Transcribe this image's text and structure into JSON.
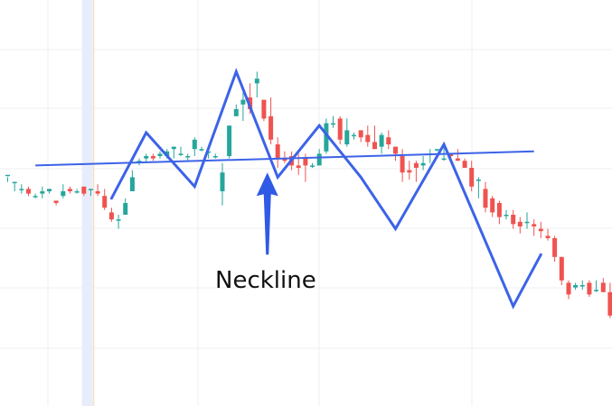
{
  "chart_data": {
    "type": "candlestick",
    "title": "",
    "xlabel": "",
    "ylabel": "",
    "grid": true,
    "ylim": [
      0,
      100
    ],
    "colors": {
      "up": "#26a69a",
      "down": "#ef5350",
      "pattern": "#3c63e8"
    },
    "candles": [
      [
        47,
        47,
        46,
        44
      ],
      [
        44,
        44,
        44,
        40
      ],
      [
        41,
        41,
        43,
        39
      ],
      [
        41,
        39,
        42,
        38
      ],
      [
        38,
        38,
        39,
        37
      ],
      [
        39,
        40,
        42,
        37
      ],
      [
        40,
        41,
        41,
        39
      ],
      [
        36,
        35,
        36,
        34
      ],
      [
        38,
        40,
        43,
        37
      ],
      [
        41,
        40,
        42,
        39
      ],
      [
        40,
        40,
        41,
        39
      ],
      [
        42,
        39,
        42,
        38
      ],
      [
        41,
        41,
        41,
        38
      ],
      [
        40,
        39,
        43,
        38
      ],
      [
        38,
        33,
        41,
        32
      ],
      [
        31,
        28,
        33,
        27
      ],
      [
        28,
        28,
        30,
        24
      ],
      [
        30,
        35,
        37,
        30
      ],
      [
        40,
        46,
        49,
        40
      ],
      [
        53,
        53,
        54,
        51
      ],
      [
        54,
        55,
        56,
        52
      ],
      [
        55,
        54,
        56,
        53
      ],
      [
        55,
        56,
        57,
        54
      ],
      [
        55,
        57,
        58,
        54
      ],
      [
        58,
        59,
        59,
        54
      ],
      [
        56,
        56,
        59,
        55
      ],
      [
        55,
        55,
        56,
        53
      ],
      [
        58,
        62,
        63,
        55
      ],
      [
        58,
        58,
        59,
        57
      ],
      [
        57,
        57,
        57,
        54
      ],
      [
        55,
        55,
        56,
        54
      ],
      [
        40,
        48,
        52,
        34
      ],
      [
        55,
        68,
        68,
        54
      ],
      [
        72,
        75,
        77,
        72
      ],
      [
        77,
        79,
        82,
        70
      ],
      [
        80,
        75,
        86,
        73
      ],
      [
        86,
        88,
        91,
        80
      ],
      [
        79,
        71,
        79,
        70
      ],
      [
        72,
        62,
        80,
        60
      ],
      [
        60,
        54,
        63,
        50
      ],
      [
        54,
        53,
        57,
        52
      ],
      [
        55,
        51,
        57,
        49
      ],
      [
        51,
        50,
        56,
        47
      ],
      [
        54,
        51,
        56,
        44
      ],
      [
        51,
        51,
        52,
        50
      ],
      [
        51,
        56,
        58,
        51
      ],
      [
        57,
        69,
        71,
        56
      ],
      [
        69,
        69,
        72,
        67
      ],
      [
        71,
        62,
        72,
        60
      ],
      [
        60,
        66,
        71,
        59
      ],
      [
        64,
        64,
        65,
        62
      ],
      [
        66,
        63,
        66,
        61
      ],
      [
        64,
        61,
        68,
        59
      ],
      [
        61,
        58,
        68,
        58
      ],
      [
        59,
        64,
        65,
        56
      ],
      [
        63,
        60,
        66,
        58
      ],
      [
        59,
        56,
        59,
        53
      ],
      [
        55,
        48,
        58,
        44
      ],
      [
        49,
        48,
        53,
        45
      ],
      [
        52,
        50,
        53,
        44
      ],
      [
        51,
        52,
        55,
        49
      ],
      [
        56,
        56,
        58,
        52
      ],
      [
        58,
        58,
        58,
        57
      ],
      [
        54,
        54,
        59,
        53
      ],
      [
        56,
        55,
        56,
        54
      ],
      [
        54,
        53,
        58,
        53
      ],
      [
        53,
        50,
        54,
        50
      ],
      [
        50,
        42,
        53,
        40
      ],
      [
        45,
        45,
        46,
        37
      ],
      [
        41,
        33,
        44,
        31
      ],
      [
        37,
        31,
        38,
        29
      ],
      [
        35,
        29,
        36,
        26
      ],
      [
        30,
        30,
        32,
        28
      ],
      [
        30,
        26,
        32,
        24
      ],
      [
        27,
        25,
        29,
        22
      ],
      [
        27,
        27,
        31,
        24
      ],
      [
        26,
        25,
        28,
        21
      ],
      [
        24,
        23,
        27,
        20
      ],
      [
        21,
        20,
        24,
        19
      ],
      [
        20,
        12,
        21,
        10
      ],
      [
        12,
        2,
        12,
        0
      ],
      [
        1,
        -4,
        2,
        -6
      ],
      [
        -1,
        0,
        1,
        -2
      ],
      [
        0,
        0,
        2,
        -2
      ],
      [
        1,
        -4,
        2,
        -5
      ],
      [
        -2,
        -2,
        2,
        -3
      ],
      [
        1,
        -3,
        3,
        -3
      ],
      [
        -3,
        -13,
        1,
        -14
      ]
    ],
    "annotations": {
      "pattern_path": [
        [
          0,
          37
        ],
        [
          5,
          65
        ],
        [
          12,
          42
        ],
        [
          18,
          91
        ],
        [
          24,
          46
        ],
        [
          30,
          68
        ],
        [
          36,
          46
        ],
        [
          41,
          24
        ],
        [
          48,
          60
        ],
        [
          58,
          -9
        ],
        [
          62,
          13
        ]
      ],
      "neckline": {
        "from": [
          -2,
          51
        ],
        "to": [
          61,
          57
        ]
      },
      "arrow": {
        "x": 16,
        "from": 13,
        "to": 23
      },
      "highlight_x": 11.5,
      "label": "Neckline"
    }
  }
}
